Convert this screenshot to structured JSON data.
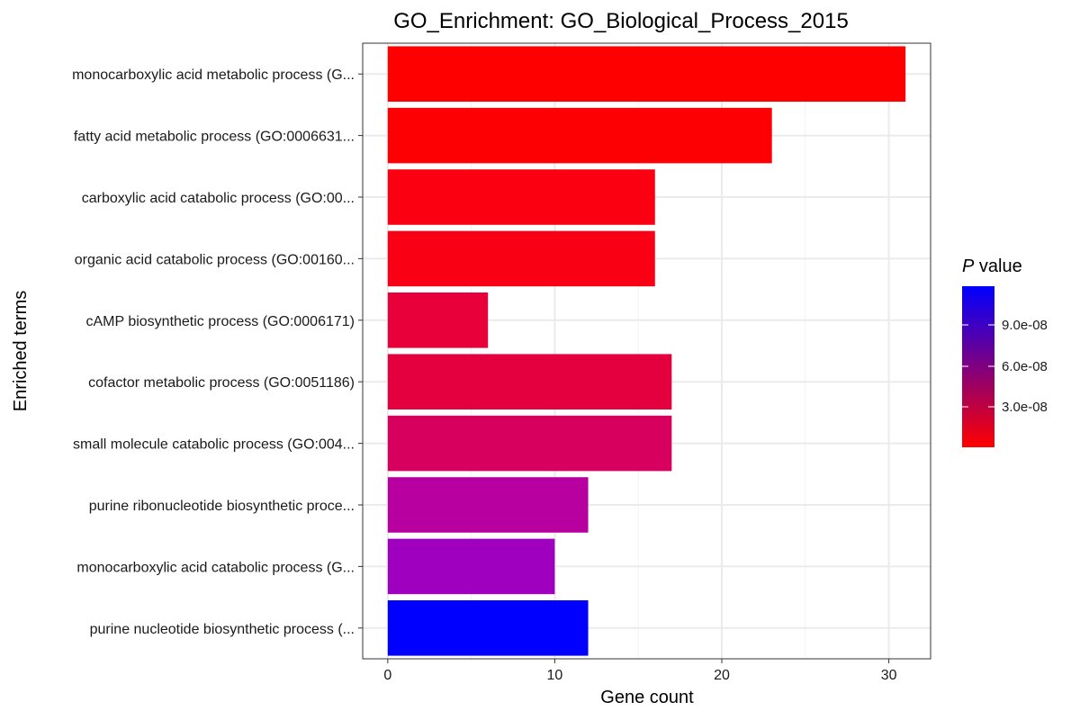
{
  "chart_data": {
    "type": "bar",
    "orientation": "horizontal",
    "title": "GO_Enrichment: GO_Biological_Process_2015",
    "xlabel": "Gene count",
    "ylabel": "Enriched terms",
    "xlim": [
      -1.5,
      32.5
    ],
    "xticks": [
      0,
      10,
      20,
      30
    ],
    "grid": true,
    "categories": [
      "monocarboxylic acid metabolic process (G...",
      "fatty acid metabolic process (GO:0006631...",
      "carboxylic acid catabolic process (GO:00...",
      "organic acid catabolic process (GO:00160...",
      "cAMP biosynthetic process (GO:0006171)",
      "cofactor metabolic process (GO:0051186)",
      "small molecule catabolic process (GO:004...",
      "purine ribonucleotide biosynthetic proce...",
      "monocarboxylic acid catabolic process (G...",
      "purine nucleotide biosynthetic process (..."
    ],
    "values": [
      31,
      23,
      16,
      16,
      6,
      17,
      17,
      12,
      10,
      12
    ],
    "bar_colors": [
      "#ff0000",
      "#fd0003",
      "#fa0010",
      "#f90014",
      "#e8003a",
      "#e4003f",
      "#d8005e",
      "#b800a0",
      "#9f00bf",
      "#0000ff"
    ],
    "legend": {
      "title_italic": "P",
      "title_rest": " value",
      "placement": "right",
      "gradient_low": "#ff0000",
      "gradient_high": "#0000ff",
      "ticks": [
        "9.0e-08",
        "6.0e-08",
        "3.0e-08"
      ]
    }
  }
}
